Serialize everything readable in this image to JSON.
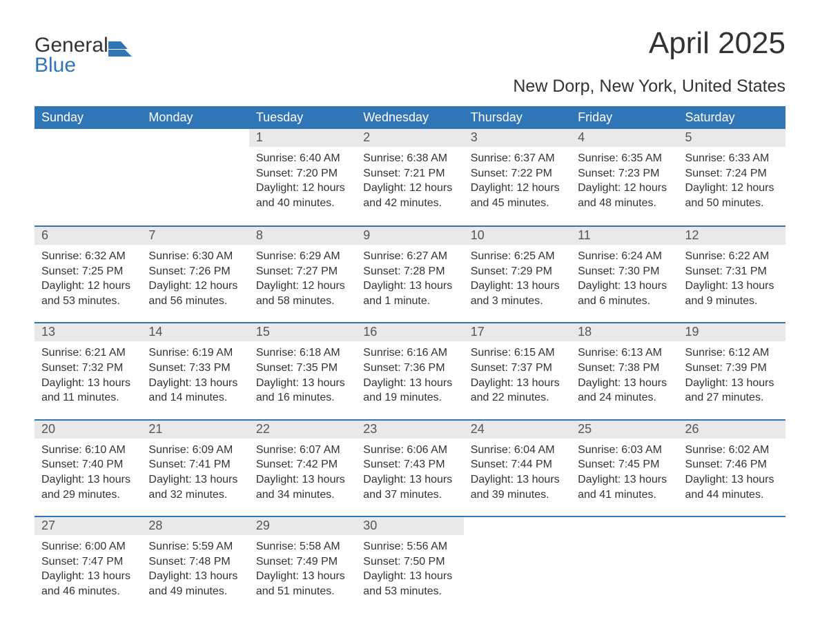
{
  "logo": {
    "line1": "General",
    "line2": "Blue",
    "flag_color": "#3076b7"
  },
  "title": "April 2025",
  "subtitle": "New Dorp, New York, United States",
  "columns": [
    "Sunday",
    "Monday",
    "Tuesday",
    "Wednesday",
    "Thursday",
    "Friday",
    "Saturday"
  ],
  "colors": {
    "header_bg": "#3076b7",
    "header_text": "#ffffff",
    "daynum_bg": "#e9e9e9",
    "daynum_text": "#555555",
    "body_text": "#333333",
    "week_border": "#3076b7",
    "background": "#ffffff",
    "logo_accent": "#3076b7"
  },
  "fonts": {
    "family": "Arial",
    "title_size": 44,
    "subtitle_size": 25,
    "header_size": 18,
    "daynum_size": 18,
    "body_size": 16,
    "logo_size": 30
  },
  "label_templates": {
    "sunrise": "Sunrise: {v}",
    "sunset": "Sunset: {v}",
    "daylight": "Daylight: {v}"
  },
  "weeks": [
    [
      null,
      null,
      {
        "n": "1",
        "sunrise": "6:40 AM",
        "sunset": "7:20 PM",
        "daylight": "12 hours and 40 minutes."
      },
      {
        "n": "2",
        "sunrise": "6:38 AM",
        "sunset": "7:21 PM",
        "daylight": "12 hours and 42 minutes."
      },
      {
        "n": "3",
        "sunrise": "6:37 AM",
        "sunset": "7:22 PM",
        "daylight": "12 hours and 45 minutes."
      },
      {
        "n": "4",
        "sunrise": "6:35 AM",
        "sunset": "7:23 PM",
        "daylight": "12 hours and 48 minutes."
      },
      {
        "n": "5",
        "sunrise": "6:33 AM",
        "sunset": "7:24 PM",
        "daylight": "12 hours and 50 minutes."
      }
    ],
    [
      {
        "n": "6",
        "sunrise": "6:32 AM",
        "sunset": "7:25 PM",
        "daylight": "12 hours and 53 minutes."
      },
      {
        "n": "7",
        "sunrise": "6:30 AM",
        "sunset": "7:26 PM",
        "daylight": "12 hours and 56 minutes."
      },
      {
        "n": "8",
        "sunrise": "6:29 AM",
        "sunset": "7:27 PM",
        "daylight": "12 hours and 58 minutes."
      },
      {
        "n": "9",
        "sunrise": "6:27 AM",
        "sunset": "7:28 PM",
        "daylight": "13 hours and 1 minute."
      },
      {
        "n": "10",
        "sunrise": "6:25 AM",
        "sunset": "7:29 PM",
        "daylight": "13 hours and 3 minutes."
      },
      {
        "n": "11",
        "sunrise": "6:24 AM",
        "sunset": "7:30 PM",
        "daylight": "13 hours and 6 minutes."
      },
      {
        "n": "12",
        "sunrise": "6:22 AM",
        "sunset": "7:31 PM",
        "daylight": "13 hours and 9 minutes."
      }
    ],
    [
      {
        "n": "13",
        "sunrise": "6:21 AM",
        "sunset": "7:32 PM",
        "daylight": "13 hours and 11 minutes."
      },
      {
        "n": "14",
        "sunrise": "6:19 AM",
        "sunset": "7:33 PM",
        "daylight": "13 hours and 14 minutes."
      },
      {
        "n": "15",
        "sunrise": "6:18 AM",
        "sunset": "7:35 PM",
        "daylight": "13 hours and 16 minutes."
      },
      {
        "n": "16",
        "sunrise": "6:16 AM",
        "sunset": "7:36 PM",
        "daylight": "13 hours and 19 minutes."
      },
      {
        "n": "17",
        "sunrise": "6:15 AM",
        "sunset": "7:37 PM",
        "daylight": "13 hours and 22 minutes."
      },
      {
        "n": "18",
        "sunrise": "6:13 AM",
        "sunset": "7:38 PM",
        "daylight": "13 hours and 24 minutes."
      },
      {
        "n": "19",
        "sunrise": "6:12 AM",
        "sunset": "7:39 PM",
        "daylight": "13 hours and 27 minutes."
      }
    ],
    [
      {
        "n": "20",
        "sunrise": "6:10 AM",
        "sunset": "7:40 PM",
        "daylight": "13 hours and 29 minutes."
      },
      {
        "n": "21",
        "sunrise": "6:09 AM",
        "sunset": "7:41 PM",
        "daylight": "13 hours and 32 minutes."
      },
      {
        "n": "22",
        "sunrise": "6:07 AM",
        "sunset": "7:42 PM",
        "daylight": "13 hours and 34 minutes."
      },
      {
        "n": "23",
        "sunrise": "6:06 AM",
        "sunset": "7:43 PM",
        "daylight": "13 hours and 37 minutes."
      },
      {
        "n": "24",
        "sunrise": "6:04 AM",
        "sunset": "7:44 PM",
        "daylight": "13 hours and 39 minutes."
      },
      {
        "n": "25",
        "sunrise": "6:03 AM",
        "sunset": "7:45 PM",
        "daylight": "13 hours and 41 minutes."
      },
      {
        "n": "26",
        "sunrise": "6:02 AM",
        "sunset": "7:46 PM",
        "daylight": "13 hours and 44 minutes."
      }
    ],
    [
      {
        "n": "27",
        "sunrise": "6:00 AM",
        "sunset": "7:47 PM",
        "daylight": "13 hours and 46 minutes."
      },
      {
        "n": "28",
        "sunrise": "5:59 AM",
        "sunset": "7:48 PM",
        "daylight": "13 hours and 49 minutes."
      },
      {
        "n": "29",
        "sunrise": "5:58 AM",
        "sunset": "7:49 PM",
        "daylight": "13 hours and 51 minutes."
      },
      {
        "n": "30",
        "sunrise": "5:56 AM",
        "sunset": "7:50 PM",
        "daylight": "13 hours and 53 minutes."
      },
      null,
      null,
      null
    ]
  ]
}
